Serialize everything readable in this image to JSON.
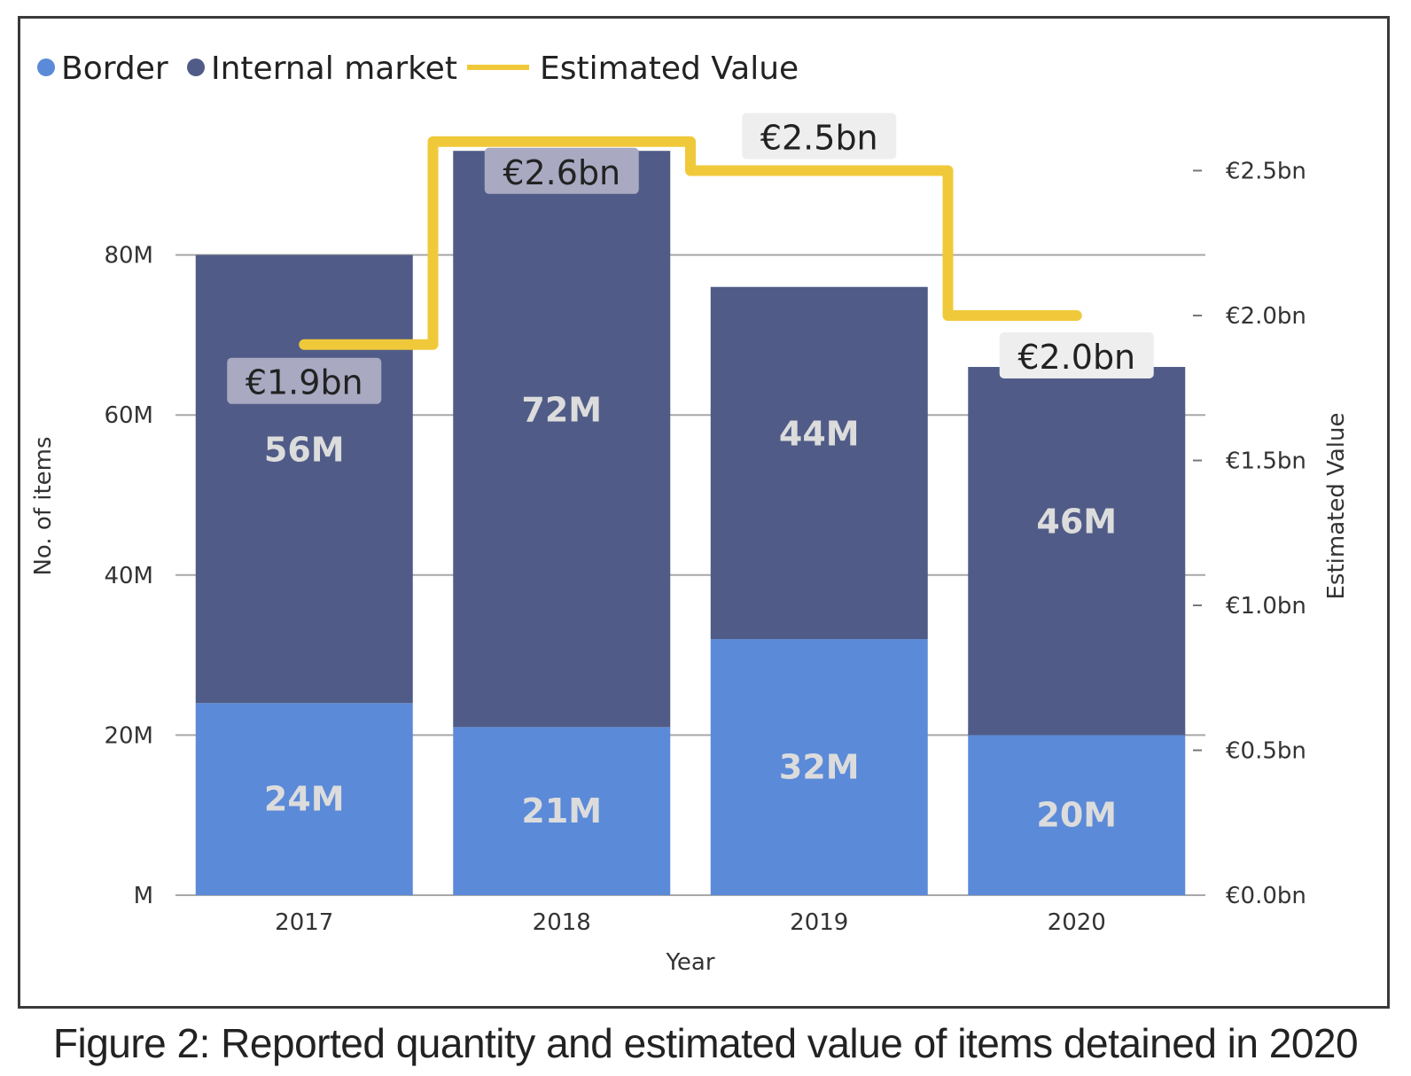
{
  "caption": "Figure 2: Reported quantity and estimated value of items detained in 2020",
  "colors": {
    "border": "#5b8ad8",
    "internal_market": "#505c87",
    "estimated_value": "#f0c93a",
    "grid": "#a8a8a8",
    "axis_text": "#333333"
  },
  "chart_data": {
    "type": "bar",
    "stacked": true,
    "categories": [
      "2017",
      "2018",
      "2019",
      "2020"
    ],
    "series": [
      {
        "name": "Border",
        "values": [
          24,
          21,
          32,
          20
        ],
        "labels": [
          "24M",
          "21M",
          "32M",
          "20M"
        ]
      },
      {
        "name": "Internal market",
        "values": [
          56,
          72,
          44,
          46
        ],
        "labels": [
          "56M",
          "72M",
          "44M",
          "46M"
        ]
      }
    ],
    "line_series": {
      "name": "Estimated Value",
      "values": [
        1.9,
        2.6,
        2.5,
        2.0
      ],
      "labels": [
        "€1.9bn",
        "€2.6bn",
        "€2.5bn",
        "€2.0bn"
      ],
      "axis": "right",
      "step": true
    },
    "xlabel": "Year",
    "ylabel": "No. of items",
    "y2label": "Estimated Value",
    "ylim": [
      0,
      100
    ],
    "y_ticks": [
      0,
      20,
      40,
      60,
      80
    ],
    "y_tick_labels": [
      "M",
      "20M",
      "40M",
      "60M",
      "80M"
    ],
    "y2lim": [
      0,
      3.06
    ],
    "y2_ticks": [
      0,
      0.5,
      1.0,
      1.5,
      2.0,
      2.5
    ],
    "y2_tick_labels": [
      "€0.0bn",
      "€0.5bn",
      "€1.0bn",
      "€1.5bn",
      "€2.0bn",
      "€2.5bn"
    ],
    "grid": true,
    "legend": "top-left"
  }
}
